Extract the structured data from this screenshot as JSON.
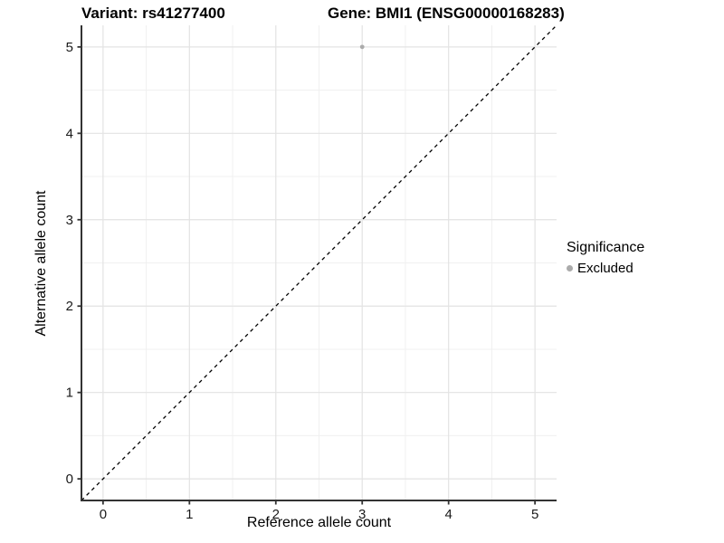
{
  "chart_data": {
    "type": "scatter",
    "title_left": "Variant: rs41277400",
    "title_right": "Gene: BMI1 (ENSG00000168283)",
    "xlabel": "Reference allele count",
    "ylabel": "Alternative allele count",
    "xlim": [
      -0.25,
      5.25
    ],
    "ylim": [
      -0.25,
      5.25
    ],
    "x_ticks": [
      0,
      1,
      2,
      3,
      4,
      5
    ],
    "y_ticks": [
      0,
      1,
      2,
      3,
      4,
      5
    ],
    "grid": "major+minor",
    "reference_line": {
      "type": "identity y=x",
      "style": "dashed",
      "color": "#000000"
    },
    "series": [
      {
        "name": "Excluded",
        "color": "#ababab",
        "points": [
          {
            "x": 3,
            "y": 5
          }
        ]
      }
    ],
    "legend": {
      "title": "Significance",
      "position": "right",
      "entries": [
        {
          "label": "Excluded",
          "color": "#ababab"
        }
      ]
    },
    "colors": {
      "background": "#ffffff",
      "grid_major": "#e3e3e3",
      "grid_minor": "#f0f0f0",
      "axis_line": "#333333",
      "tick_mark": "#333333",
      "tick_label": "#1a1a1a"
    }
  }
}
